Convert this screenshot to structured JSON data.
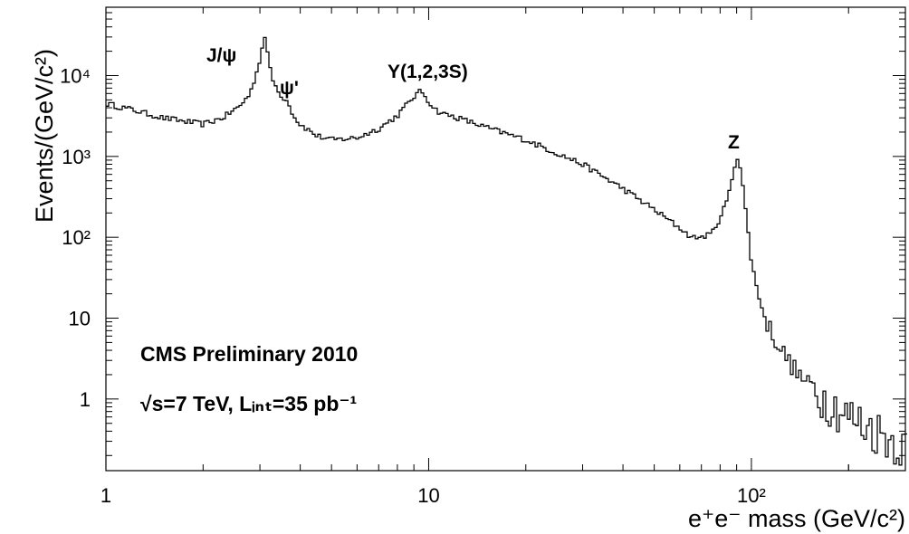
{
  "chart_data": {
    "type": "line",
    "style": "histogram-step",
    "x_scale": "log",
    "y_scale": "log",
    "xlim": [
      1,
      300
    ],
    "ylim": [
      0.13,
      70000
    ],
    "xlabel": "e⁺e⁻ mass (GeV/c²)",
    "ylabel": "Events/(GeV/c²)",
    "x_ticks": [
      {
        "value": 1,
        "label": "1"
      },
      {
        "value": 10,
        "label": "10"
      },
      {
        "value": 100,
        "label": "10²"
      }
    ],
    "y_ticks": [
      {
        "value": 1,
        "label": "1"
      },
      {
        "value": 10,
        "label": "10"
      },
      {
        "value": 100,
        "label": "10²"
      },
      {
        "value": 1000,
        "label": "10³"
      },
      {
        "value": 10000,
        "label": "10⁴"
      }
    ],
    "grid": false,
    "annotations": [
      {
        "text": "J/ψ",
        "x": 3.1
      },
      {
        "text": "ψ'",
        "x": 3.7
      },
      {
        "text": "Υ(1,2,3S)",
        "x": 9.5
      },
      {
        "text": "Z",
        "x": 91
      }
    ],
    "info_text": [
      "CMS Preliminary 2010",
      "√s=7 TeV, Lᵢₙₜ=35 pb⁻¹"
    ],
    "series": [
      {
        "x": [
          1.0,
          1.2,
          1.5,
          2.0,
          2.3,
          2.6,
          2.8,
          2.95,
          3.05,
          3.1,
          3.15,
          3.25,
          3.4,
          3.6,
          3.7,
          3.8,
          4.0,
          4.5,
          5,
          6,
          7,
          8,
          9,
          9.5,
          10,
          10.5,
          11,
          12,
          15,
          20,
          30,
          40,
          50,
          60,
          65,
          70,
          75,
          80,
          85,
          88,
          90,
          91,
          92,
          94,
          97,
          100,
          105,
          110,
          120,
          130,
          140,
          150,
          170,
          200,
          230,
          260,
          300
        ],
        "y": [
          4500,
          3800,
          3000,
          2500,
          3000,
          4200,
          6000,
          12000,
          22000,
          33000,
          22000,
          10000,
          6500,
          5000,
          4500,
          3200,
          2500,
          1800,
          1600,
          1700,
          2200,
          3200,
          5500,
          6500,
          4800,
          3800,
          3400,
          3100,
          2300,
          1600,
          800,
          400,
          220,
          130,
          100,
          100,
          110,
          170,
          330,
          650,
          950,
          1000,
          800,
          450,
          150,
          50,
          20,
          10,
          5,
          3,
          2,
          1.5,
          1,
          0.6,
          0.45,
          0.35,
          0.25
        ]
      }
    ]
  }
}
